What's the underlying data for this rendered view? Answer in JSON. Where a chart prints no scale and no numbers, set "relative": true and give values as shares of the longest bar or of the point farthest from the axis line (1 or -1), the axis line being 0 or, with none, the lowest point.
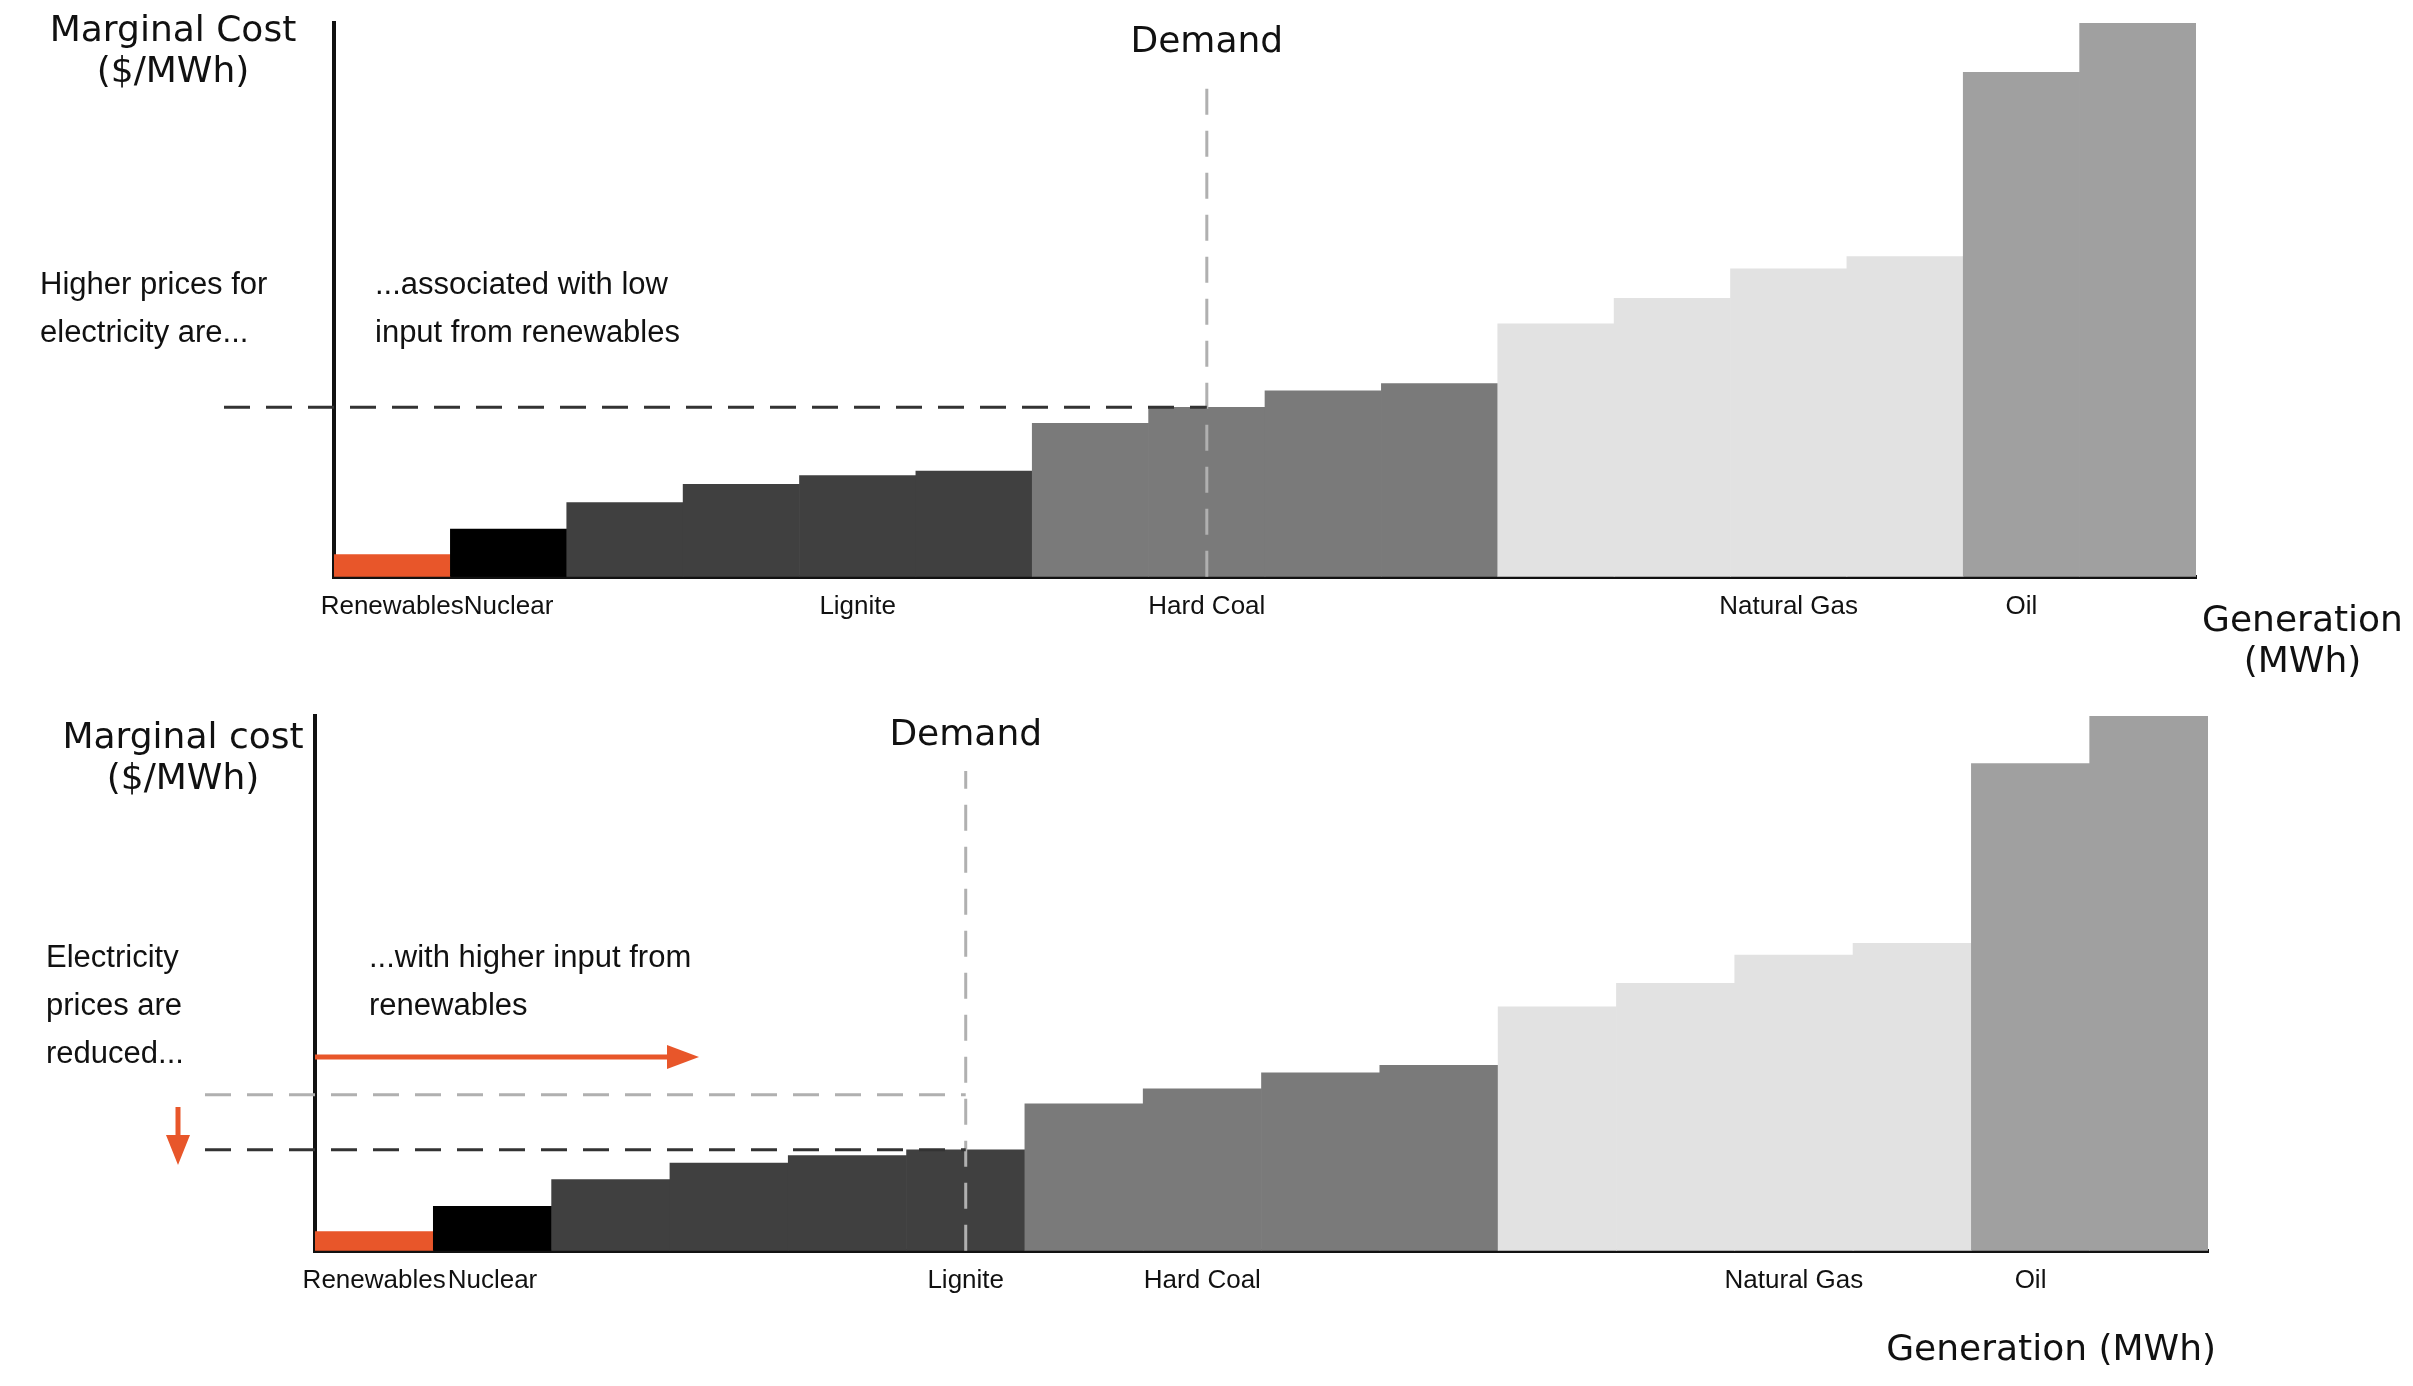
{
  "chart_data": [
    {
      "type": "bar",
      "relative": true,
      "ylabel": "Marginal Cost ($/MWh)",
      "xlabel": "Generation (MWh)",
      "categories": [
        "Renewables",
        "Nuclear",
        null,
        null,
        "Lignite",
        null,
        null,
        "Hard Coal",
        null,
        null,
        null,
        null,
        "Natural Gas",
        null,
        "Oil",
        null
      ],
      "values": [
        0.04,
        0.086,
        0.134,
        0.167,
        0.183,
        0.191,
        0.277,
        0.306,
        0.336,
        0.349,
        0.457,
        0.503,
        0.556,
        0.578,
        0.911,
        1
      ],
      "colors": [
        "#e8562a",
        "#000000",
        "#404040",
        "#404040",
        "#404040",
        "#404040",
        "#7a7a7a",
        "#7a7a7a",
        "#7a7a7a",
        "#7a7a7a",
        "#e2e2e2",
        "#e2e2e2",
        "#e2e2e2",
        "#e2e2e2",
        "#a0a0a0",
        "#a0a0a0"
      ],
      "ref_lines": [
        {
          "axis": "x",
          "value": "Hard Coal",
          "label": "Demand",
          "color": "#b0b0b0",
          "line_style": "dashed"
        },
        {
          "axis": "y",
          "value": 0.306,
          "color": "#333333",
          "line_style": "dashed"
        }
      ],
      "annotations": [
        "Higher prices for electricity are...",
        "...associated with low input from renewables"
      ]
    },
    {
      "type": "bar",
      "relative": true,
      "ylabel": "Marginal cost ($/MWh)",
      "xlabel": "Generation (MWh)",
      "categories": [
        "Renewables",
        "Nuclear",
        null,
        null,
        null,
        "Lignite",
        null,
        "Hard Coal",
        null,
        null,
        null,
        null,
        "Natural Gas",
        null,
        "Oil",
        null
      ],
      "values": [
        0.036,
        0.083,
        0.133,
        0.164,
        0.178,
        0.189,
        0.275,
        0.303,
        0.333,
        0.347,
        0.456,
        0.5,
        0.553,
        0.575,
        0.911,
        1
      ],
      "colors": [
        "#e8562a",
        "#000000",
        "#404040",
        "#404040",
        "#404040",
        "#404040",
        "#7a7a7a",
        "#7a7a7a",
        "#7a7a7a",
        "#7a7a7a",
        "#e2e2e2",
        "#e2e2e2",
        "#e2e2e2",
        "#e2e2e2",
        "#a0a0a0",
        "#a0a0a0"
      ],
      "ref_lines": [
        {
          "axis": "x",
          "value": "Lignite",
          "label": "Demand",
          "color": "#b0b0b0",
          "line_style": "dashed"
        },
        {
          "axis": "y",
          "value": 0.292,
          "color": "#b0b0b0",
          "line_style": "dashed"
        },
        {
          "axis": "y",
          "value": 0.189,
          "color": "#333333",
          "line_style": "dashed"
        }
      ],
      "annotations": [
        "Electricity prices are reduced...",
        "...with higher input from renewables"
      ]
    }
  ]
}
